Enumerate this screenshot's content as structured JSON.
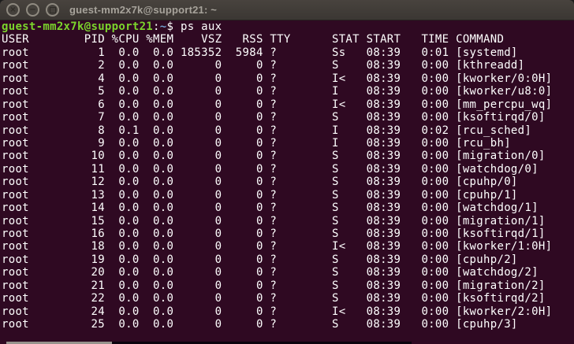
{
  "window": {
    "title": "guest-mm2x7k@support21: ~",
    "controls": {
      "close": "×",
      "minimize": "−"
    }
  },
  "colors": {
    "terminal-bg": "#2f0922",
    "terminal-fg": "#ffffff",
    "prompt-green": "#7bd42c",
    "prompt-blue": "#729fcf",
    "titlebar-bg": "#3e3a36",
    "titlebar-text": "#a7a39b"
  },
  "terminal": {
    "prompt": {
      "user_host": "guest-mm2x7k@support21",
      "colon": ":",
      "path": "~",
      "dollar": "$ ",
      "command": "ps aux"
    },
    "ps": {
      "columns": [
        "USER",
        "PID",
        "%CPU",
        "%MEM",
        "VSZ",
        "RSS",
        "TTY",
        "STAT",
        "START",
        "TIME",
        "COMMAND"
      ],
      "rows": [
        [
          "root",
          "1",
          "0.0",
          "0.0",
          "185352",
          "5984",
          "?",
          "Ss",
          "08:39",
          "0:01",
          "[systemd]"
        ],
        [
          "root",
          "2",
          "0.0",
          "0.0",
          "0",
          "0",
          "?",
          "S",
          "08:39",
          "0:00",
          "[kthreadd]"
        ],
        [
          "root",
          "4",
          "0.0",
          "0.0",
          "0",
          "0",
          "?",
          "I<",
          "08:39",
          "0:00",
          "[kworker/0:0H]"
        ],
        [
          "root",
          "5",
          "0.0",
          "0.0",
          "0",
          "0",
          "?",
          "I",
          "08:39",
          "0:00",
          "[kworker/u8:0]"
        ],
        [
          "root",
          "6",
          "0.0",
          "0.0",
          "0",
          "0",
          "?",
          "I<",
          "08:39",
          "0:00",
          "[mm_percpu_wq]"
        ],
        [
          "root",
          "7",
          "0.0",
          "0.0",
          "0",
          "0",
          "?",
          "S",
          "08:39",
          "0:00",
          "[ksoftirqd/0]"
        ],
        [
          "root",
          "8",
          "0.1",
          "0.0",
          "0",
          "0",
          "?",
          "I",
          "08:39",
          "0:02",
          "[rcu_sched]"
        ],
        [
          "root",
          "9",
          "0.0",
          "0.0",
          "0",
          "0",
          "?",
          "I",
          "08:39",
          "0:00",
          "[rcu_bh]"
        ],
        [
          "root",
          "10",
          "0.0",
          "0.0",
          "0",
          "0",
          "?",
          "S",
          "08:39",
          "0:00",
          "[migration/0]"
        ],
        [
          "root",
          "11",
          "0.0",
          "0.0",
          "0",
          "0",
          "?",
          "S",
          "08:39",
          "0:00",
          "[watchdog/0]"
        ],
        [
          "root",
          "12",
          "0.0",
          "0.0",
          "0",
          "0",
          "?",
          "S",
          "08:39",
          "0:00",
          "[cpuhp/0]"
        ],
        [
          "root",
          "13",
          "0.0",
          "0.0",
          "0",
          "0",
          "?",
          "S",
          "08:39",
          "0:00",
          "[cpuhp/1]"
        ],
        [
          "root",
          "14",
          "0.0",
          "0.0",
          "0",
          "0",
          "?",
          "S",
          "08:39",
          "0:00",
          "[watchdog/1]"
        ],
        [
          "root",
          "15",
          "0.0",
          "0.0",
          "0",
          "0",
          "?",
          "S",
          "08:39",
          "0:00",
          "[migration/1]"
        ],
        [
          "root",
          "16",
          "0.0",
          "0.0",
          "0",
          "0",
          "?",
          "S",
          "08:39",
          "0:00",
          "[ksoftirqd/1]"
        ],
        [
          "root",
          "18",
          "0.0",
          "0.0",
          "0",
          "0",
          "?",
          "I<",
          "08:39",
          "0:00",
          "[kworker/1:0H]"
        ],
        [
          "root",
          "19",
          "0.0",
          "0.0",
          "0",
          "0",
          "?",
          "S",
          "08:39",
          "0:00",
          "[cpuhp/2]"
        ],
        [
          "root",
          "20",
          "0.0",
          "0.0",
          "0",
          "0",
          "?",
          "S",
          "08:39",
          "0:00",
          "[watchdog/2]"
        ],
        [
          "root",
          "21",
          "0.0",
          "0.0",
          "0",
          "0",
          "?",
          "S",
          "08:39",
          "0:00",
          "[migration/2]"
        ],
        [
          "root",
          "22",
          "0.0",
          "0.0",
          "0",
          "0",
          "?",
          "S",
          "08:39",
          "0:00",
          "[ksoftirqd/2]"
        ],
        [
          "root",
          "24",
          "0.0",
          "0.0",
          "0",
          "0",
          "?",
          "I<",
          "08:39",
          "0:00",
          "[kworker/2:0H]"
        ],
        [
          "root",
          "25",
          "0.0",
          "0.0",
          "0",
          "0",
          "?",
          "S",
          "08:39",
          "0:00",
          "[cpuhp/3]"
        ]
      ]
    }
  }
}
